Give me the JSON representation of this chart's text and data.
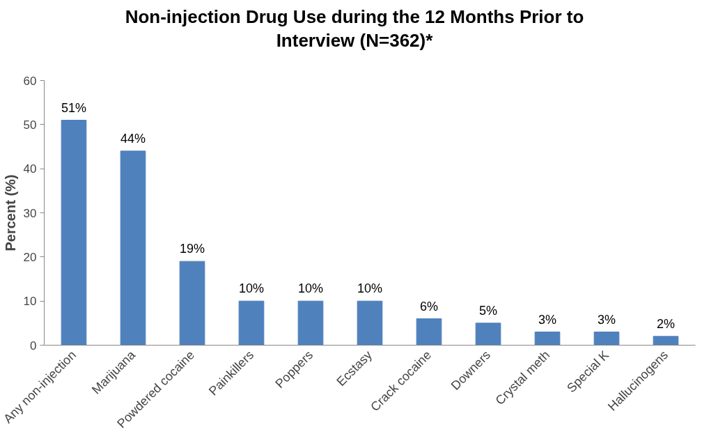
{
  "chart_data": {
    "type": "bar",
    "title": "Non-injection Drug Use during the 12 Months Prior to\nInterview (N=362)*",
    "ylabel": "Percent (%)",
    "categories": [
      "Any non-injection",
      "Marijuana",
      "Powdered cocaine",
      "Painkillers",
      "Poppers",
      "Ecstasy",
      "Crack cocaine",
      "Downers",
      "Crystal meth",
      "Special K",
      "Hallucinogens"
    ],
    "values": [
      51,
      44,
      19,
      10,
      10,
      10,
      6,
      5,
      3,
      3,
      2
    ],
    "value_labels": [
      "51%",
      "44%",
      "19%",
      "10%",
      "10%",
      "10%",
      "6%",
      "5%",
      "3%",
      "3%",
      "2%"
    ],
    "color": "#4f81bd",
    "ylim": [
      0,
      60
    ],
    "yticks": [
      0,
      10,
      20,
      30,
      40,
      50,
      60
    ],
    "grid": false
  }
}
